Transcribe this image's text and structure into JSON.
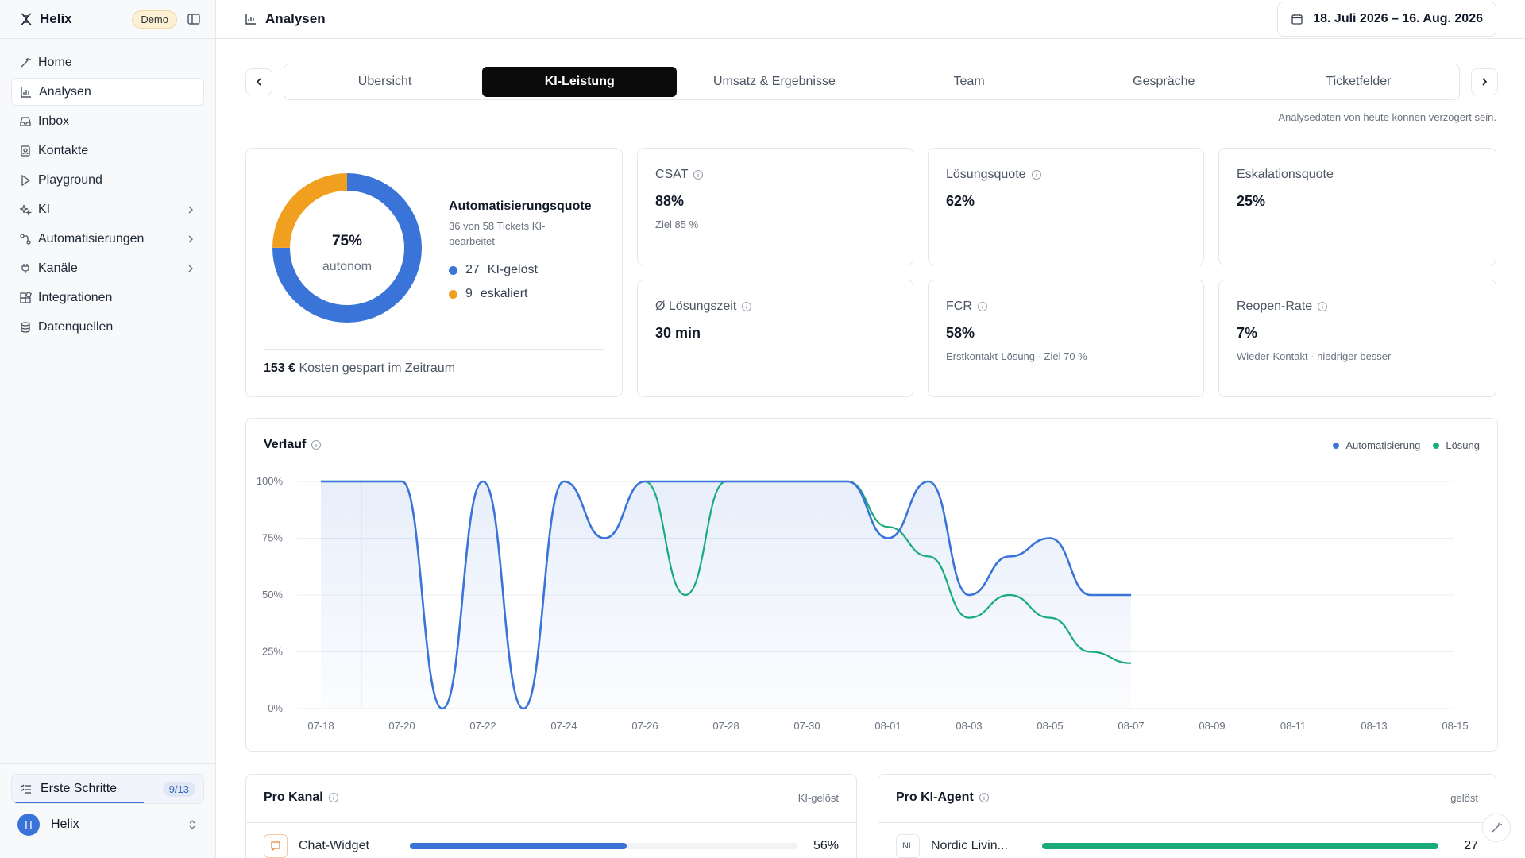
{
  "brand": {
    "name": "Helix",
    "badge": "Demo"
  },
  "sidebar": {
    "items": [
      {
        "label": "Home",
        "icon": "wand-icon"
      },
      {
        "label": "Analysen",
        "icon": "bar-chart-icon",
        "active": true
      },
      {
        "label": "Inbox",
        "icon": "inbox-icon"
      },
      {
        "label": "Kontakte",
        "icon": "contacts-icon"
      },
      {
        "label": "Playground",
        "icon": "play-icon"
      },
      {
        "label": "KI",
        "icon": "sparkles-icon",
        "chevron": true
      },
      {
        "label": "Automatisierungen",
        "icon": "workflow-icon",
        "chevron": true
      },
      {
        "label": "Kanäle",
        "icon": "plug-icon",
        "chevron": true
      },
      {
        "label": "Integrationen",
        "icon": "blocks-icon"
      },
      {
        "label": "Datenquellen",
        "icon": "database-icon"
      }
    ],
    "getting_started": {
      "label": "Erste Schritte",
      "count": "9/13",
      "progress": 0.69
    },
    "user": {
      "initial": "H",
      "name": "Helix"
    }
  },
  "header": {
    "title": "Analysen",
    "date_range": "18. Juli 2026 – 16. Aug. 2026"
  },
  "tabs": [
    "Übersicht",
    "KI-Leistung",
    "Umsatz & Ergebnisse",
    "Team",
    "Gespräche",
    "Ticketfelder"
  ],
  "active_tab": 1,
  "note": "Analysedaten von heute können verzögert sein.",
  "donut": {
    "percent": "75%",
    "sub": "autonom",
    "title": "Automatisierungsquote",
    "desc": "36 von 58 Tickets KI-bearbeitet",
    "legend": [
      {
        "value": "27",
        "label": "KI-gelöst",
        "color": "#3b74d9"
      },
      {
        "value": "9",
        "label": "eskaliert",
        "color": "#f0a01e"
      }
    ],
    "ratio": 0.75,
    "saved_amount": "153 €",
    "saved_text": "Kosten gespart im Zeitraum"
  },
  "metrics": [
    {
      "label": "CSAT",
      "value": "88%",
      "sub": "Ziel 85 %",
      "info": true
    },
    {
      "label": "Lösungsquote",
      "value": "62%",
      "sub": "",
      "info": true
    },
    {
      "label": "Eskalationsquote",
      "value": "25%",
      "sub": "",
      "info": false
    },
    {
      "label": "Ø Lösungszeit",
      "value": "30 min",
      "sub": "",
      "info": true
    },
    {
      "label": "FCR",
      "value": "58%",
      "sub": "Erstkontakt-Lösung · Ziel 70 %",
      "info": true
    },
    {
      "label": "Reopen-Rate",
      "value": "7%",
      "sub": "Wieder-Kontakt · niedriger besser",
      "info": true
    }
  ],
  "chart_data": {
    "type": "line",
    "title": "Verlauf",
    "x": [
      "07-18",
      "07-19",
      "07-20",
      "07-21",
      "07-22",
      "07-23",
      "07-24",
      "07-25",
      "07-26",
      "07-27",
      "07-28",
      "07-29",
      "07-30",
      "07-31",
      "08-01",
      "08-02",
      "08-03",
      "08-04",
      "08-05",
      "08-06",
      "08-07"
    ],
    "x_ticks": [
      "07-18",
      "07-20",
      "07-22",
      "07-24",
      "07-26",
      "07-28",
      "07-30",
      "08-01",
      "08-03",
      "08-05",
      "08-07",
      "08-09",
      "08-11",
      "08-13",
      "08-15"
    ],
    "y_ticks": [
      "0%",
      "25%",
      "50%",
      "75%",
      "100%"
    ],
    "ylim": [
      0,
      100
    ],
    "series": [
      {
        "name": "Automatisierung",
        "color": "#3b74d9",
        "values": [
          100,
          100,
          100,
          0,
          100,
          0,
          100,
          75,
          100,
          100,
          100,
          100,
          100,
          100,
          75,
          100,
          50,
          67,
          75,
          50,
          50
        ]
      },
      {
        "name": "Lösung",
        "color": "#1aab7c",
        "values": [
          100,
          100,
          100,
          0,
          100,
          0,
          100,
          75,
          100,
          50,
          100,
          100,
          100,
          100,
          80,
          67,
          40,
          50,
          40,
          25,
          20
        ]
      }
    ],
    "legend_position": "top-right",
    "grid": true
  },
  "per_channel": {
    "title": "Pro Kanal",
    "right_label": "KI-gelöst",
    "rows": [
      {
        "icon": "chat-icon",
        "name": "Chat-Widget",
        "ratio": 0.56,
        "value": "56%",
        "color": "#3b74d9"
      }
    ]
  },
  "per_agent": {
    "title": "Pro KI-Agent",
    "right_label": "gelöst",
    "rows": [
      {
        "icon_text": "NL",
        "name": "Nordic Livin...",
        "ratio": 1.0,
        "value": "27",
        "color": "#1aab7c"
      }
    ]
  }
}
